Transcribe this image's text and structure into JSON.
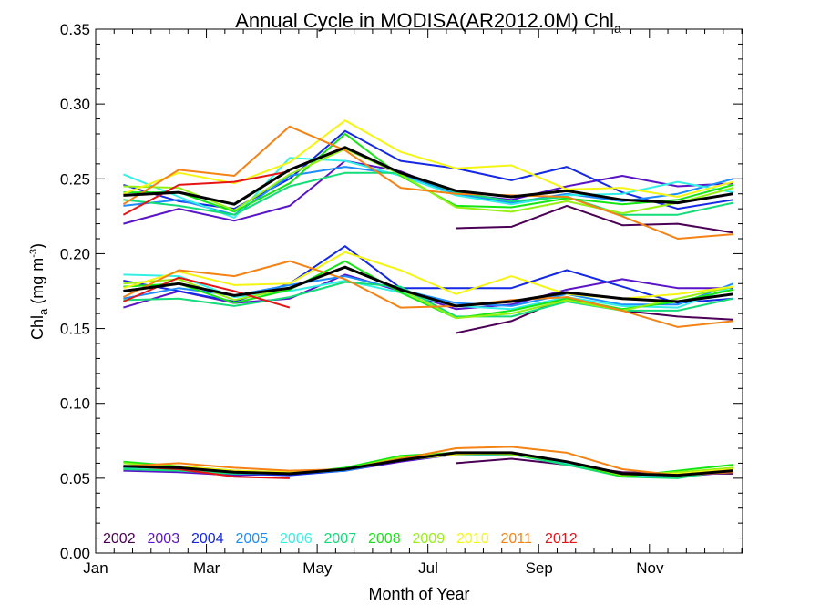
{
  "chart_data": {
    "type": "line",
    "title": "Annual Cycle in MODISA(AR2012.0M) Chl",
    "title_sub": "a",
    "xlabel": "Month of Year",
    "ylabel_main": "Chl",
    "ylabel_sub": "a",
    "ylabel_unit_pre": " (mg m",
    "ylabel_unit_sup": "-3",
    "ylabel_unit_post": ")",
    "xlim": [
      1,
      12.67
    ],
    "ylim": [
      0,
      0.35
    ],
    "x_ticks": [
      {
        "value": 1,
        "label": "Jan"
      },
      {
        "value": 3,
        "label": "Mar"
      },
      {
        "value": 5,
        "label": "May"
      },
      {
        "value": 7,
        "label": "Jul"
      },
      {
        "value": 9,
        "label": "Sep"
      },
      {
        "value": 11,
        "label": "Nov"
      }
    ],
    "y_ticks": [
      {
        "value": 0.0,
        "label": "0.00"
      },
      {
        "value": 0.05,
        "label": "0.05"
      },
      {
        "value": 0.1,
        "label": "0.10"
      },
      {
        "value": 0.15,
        "label": "0.15"
      },
      {
        "value": 0.2,
        "label": "0.20"
      },
      {
        "value": 0.25,
        "label": "0.25"
      },
      {
        "value": 0.3,
        "label": "0.30"
      },
      {
        "value": 0.35,
        "label": "0.35"
      }
    ],
    "x_minor_step": 0.333,
    "y_minor_step": 0.01,
    "legend_position": "bottom-left",
    "legend": [
      {
        "label": "2002",
        "color": "#4b0055"
      },
      {
        "label": "2003",
        "color": "#5a14c8"
      },
      {
        "label": "2004",
        "color": "#1428e6"
      },
      {
        "label": "2005",
        "color": "#1e8cff"
      },
      {
        "label": "2006",
        "color": "#32f0e6"
      },
      {
        "label": "2007",
        "color": "#14dc78"
      },
      {
        "label": "2008",
        "color": "#14e614"
      },
      {
        "label": "2009",
        "color": "#96f014"
      },
      {
        "label": "2010",
        "color": "#f5f514"
      },
      {
        "label": "2011",
        "color": "#f58214"
      },
      {
        "label": "2012",
        "color": "#e61414"
      }
    ],
    "mean_color": "#000000",
    "groups": [
      "upper",
      "middle",
      "lower"
    ],
    "series": [
      {
        "name": "2002",
        "color": "#4b0055",
        "upper": [
          null,
          null,
          null,
          null,
          null,
          null,
          0.217,
          0.218,
          0.232,
          0.219,
          0.22,
          0.214
        ],
        "middle": [
          null,
          null,
          null,
          null,
          null,
          null,
          0.147,
          0.155,
          0.171,
          0.162,
          0.158,
          0.156
        ],
        "lower": [
          null,
          null,
          null,
          null,
          null,
          null,
          0.06,
          0.063,
          0.059,
          0.054,
          0.053,
          0.053
        ]
      },
      {
        "name": "2003",
        "color": "#5a14c8",
        "upper": [
          0.22,
          0.23,
          0.222,
          0.232,
          0.262,
          0.255,
          0.24,
          0.236,
          0.245,
          0.252,
          0.245,
          0.247
        ],
        "middle": [
          0.164,
          0.175,
          0.167,
          0.17,
          0.186,
          0.175,
          0.163,
          0.166,
          0.176,
          0.183,
          0.177,
          0.177
        ],
        "lower": [
          0.055,
          0.054,
          0.052,
          0.053,
          0.055,
          0.061,
          0.066,
          0.066,
          0.061,
          0.053,
          0.051,
          0.054
        ]
      },
      {
        "name": "2004",
        "color": "#1428e6",
        "upper": [
          0.246,
          0.235,
          0.23,
          0.25,
          0.282,
          0.262,
          0.257,
          0.249,
          0.258,
          0.241,
          0.23,
          0.236
        ],
        "middle": [
          0.182,
          0.175,
          0.168,
          0.18,
          0.205,
          0.177,
          0.177,
          0.177,
          0.189,
          0.178,
          0.167,
          0.17
        ],
        "lower": [
          0.057,
          0.055,
          0.053,
          0.052,
          0.055,
          0.062,
          0.066,
          0.066,
          0.06,
          0.052,
          0.051,
          0.055
        ]
      },
      {
        "name": "2005",
        "color": "#1e8cff",
        "upper": [
          0.232,
          0.236,
          0.226,
          0.252,
          0.258,
          0.253,
          0.24,
          0.234,
          0.24,
          0.235,
          0.24,
          0.25
        ],
        "middle": [
          0.17,
          0.177,
          0.172,
          0.179,
          0.185,
          0.176,
          0.167,
          0.165,
          0.173,
          0.166,
          0.166,
          0.18
        ],
        "lower": [
          0.056,
          0.055,
          0.053,
          0.053,
          0.055,
          0.062,
          0.066,
          0.066,
          0.059,
          0.052,
          0.051,
          0.055
        ]
      },
      {
        "name": "2006",
        "color": "#32f0e6",
        "upper": [
          0.253,
          0.238,
          0.224,
          0.264,
          0.262,
          0.252,
          0.239,
          0.233,
          0.239,
          0.24,
          0.248,
          0.241
        ],
        "middle": [
          0.186,
          0.185,
          0.171,
          0.175,
          0.182,
          0.174,
          0.165,
          0.163,
          0.171,
          0.165,
          0.164,
          0.178
        ],
        "lower": [
          0.057,
          0.056,
          0.054,
          0.053,
          0.056,
          0.062,
          0.066,
          0.066,
          0.06,
          0.052,
          0.051,
          0.056
        ]
      },
      {
        "name": "2007",
        "color": "#14dc78",
        "upper": [
          0.236,
          0.232,
          0.226,
          0.245,
          0.254,
          0.254,
          0.241,
          0.235,
          0.238,
          0.226,
          0.226,
          0.234
        ],
        "middle": [
          0.169,
          0.17,
          0.165,
          0.171,
          0.181,
          0.178,
          0.158,
          0.158,
          0.168,
          0.162,
          0.162,
          0.17
        ],
        "lower": [
          0.056,
          0.055,
          0.053,
          0.054,
          0.056,
          0.063,
          0.066,
          0.066,
          0.059,
          0.051,
          0.05,
          0.056
        ]
      },
      {
        "name": "2008",
        "color": "#14e614",
        "upper": [
          0.241,
          0.241,
          0.228,
          0.247,
          0.28,
          0.252,
          0.232,
          0.231,
          0.237,
          0.233,
          0.236,
          0.246
        ],
        "middle": [
          0.178,
          0.18,
          0.167,
          0.176,
          0.195,
          0.174,
          0.157,
          0.162,
          0.17,
          0.163,
          0.168,
          0.176
        ],
        "lower": [
          0.061,
          0.058,
          0.055,
          0.053,
          0.057,
          0.065,
          0.067,
          0.066,
          0.061,
          0.051,
          0.055,
          0.059
        ]
      },
      {
        "name": "2009",
        "color": "#96f014",
        "upper": [
          0.245,
          0.244,
          0.229,
          0.253,
          0.27,
          0.253,
          0.231,
          0.228,
          0.235,
          0.227,
          0.234,
          0.244
        ],
        "middle": [
          0.18,
          0.183,
          0.169,
          0.177,
          0.191,
          0.176,
          0.157,
          0.16,
          0.169,
          0.162,
          0.17,
          0.178
        ],
        "lower": [
          0.06,
          0.057,
          0.055,
          0.054,
          0.056,
          0.064,
          0.067,
          0.066,
          0.061,
          0.052,
          0.054,
          0.057
        ]
      },
      {
        "name": "2010",
        "color": "#f5f514",
        "upper": [
          0.24,
          0.254,
          0.247,
          0.261,
          0.289,
          0.268,
          0.257,
          0.259,
          0.243,
          0.244,
          0.238,
          0.248
        ],
        "middle": [
          0.177,
          0.188,
          0.179,
          0.18,
          0.201,
          0.189,
          0.173,
          0.185,
          0.173,
          0.17,
          0.173,
          0.178
        ],
        "lower": [
          0.058,
          0.058,
          0.055,
          0.054,
          0.056,
          0.062,
          0.066,
          0.067,
          0.061,
          0.053,
          0.053,
          0.056
        ]
      },
      {
        "name": "2011",
        "color": "#f58214",
        "upper": [
          0.233,
          0.256,
          0.252,
          0.285,
          0.269,
          0.244,
          0.24,
          0.239,
          0.238,
          0.225,
          0.21,
          0.213
        ],
        "middle": [
          0.171,
          0.189,
          0.185,
          0.195,
          0.183,
          0.164,
          0.165,
          0.169,
          0.171,
          0.162,
          0.151,
          0.155
        ],
        "lower": [
          0.058,
          0.06,
          0.057,
          0.055,
          0.056,
          0.063,
          0.07,
          0.071,
          0.067,
          0.056,
          0.052,
          0.054
        ]
      },
      {
        "name": "2012",
        "color": "#e61414",
        "upper": [
          0.226,
          0.246,
          0.248,
          0.255,
          null,
          null,
          null,
          null,
          null,
          null,
          null,
          null
        ],
        "middle": [
          0.168,
          0.184,
          0.175,
          0.164,
          null,
          null,
          null,
          null,
          null,
          null,
          null,
          null
        ],
        "lower": [
          0.058,
          0.056,
          0.051,
          0.05,
          null,
          null,
          null,
          null,
          null,
          null,
          null,
          null
        ]
      },
      {
        "name": "Mean",
        "color": "#000000",
        "upper": [
          0.239,
          0.241,
          0.233,
          0.256,
          0.271,
          0.254,
          0.242,
          0.238,
          0.242,
          0.236,
          0.234,
          0.24
        ],
        "middle": [
          0.175,
          0.18,
          0.172,
          0.177,
          0.191,
          0.176,
          0.165,
          0.168,
          0.174,
          0.17,
          0.168,
          0.173
        ],
        "lower": [
          0.058,
          0.057,
          0.054,
          0.053,
          0.056,
          0.062,
          0.067,
          0.067,
          0.061,
          0.053,
          0.052,
          0.055
        ]
      }
    ]
  }
}
